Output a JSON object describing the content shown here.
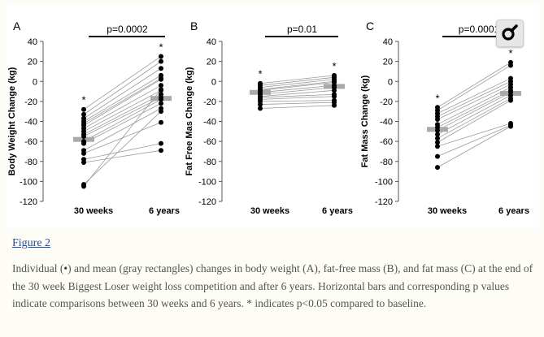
{
  "figure": {
    "link_label": "Figure 2",
    "caption_part1": "Individual (",
    "caption_bullet": "•",
    "caption_part2": ") and mean (gray rectangles) changes in body weight (A), fat-free mass (B), and fat mass (C) at the end of the 30 week Biggest Loser weight loss competition and after 6 years. Horizontal bars and corresponding p values indicate comparisons between 30 weeks and 6 years. * indicates p<0.05 compared to baseline.",
    "zoom_icon": "magnifier-icon"
  },
  "colors": {
    "dot": "#000000",
    "line": "#9a9a9a",
    "mean": "#a9a9a9",
    "axis": "#555555"
  },
  "chart_data": [
    {
      "type": "scatter",
      "panel": "A",
      "ylabel": "Body Weight Change (kg)",
      "categories": [
        "30 weeks",
        "6 years"
      ],
      "ylim": [
        -120,
        40
      ],
      "yticks": [
        40,
        20,
        0,
        -20,
        -40,
        -60,
        -80,
        -100,
        -120
      ],
      "pvalue": "p=0.0002",
      "stars": [
        "*",
        "*"
      ],
      "means": [
        -58,
        -17
      ],
      "pairs": [
        [
          -28,
          25
        ],
        [
          -33,
          20
        ],
        [
          -37,
          13
        ],
        [
          -40,
          6
        ],
        [
          -42,
          3
        ],
        [
          -44,
          2
        ],
        [
          -47,
          -4
        ],
        [
          -50,
          -9
        ],
        [
          -53,
          -13
        ],
        [
          -55,
          -16
        ],
        [
          -60,
          -18
        ],
        [
          -62,
          -22
        ],
        [
          -69,
          -27
        ],
        [
          -72,
          -41
        ],
        [
          -78,
          -62
        ],
        [
          -81,
          -69
        ],
        [
          -103,
          -30
        ],
        [
          -105,
          -8
        ]
      ]
    },
    {
      "type": "scatter",
      "panel": "B",
      "ylabel": "Fat Free Mas  Change (kg)",
      "categories": [
        "30 weeks",
        "6 years"
      ],
      "ylim": [
        -120,
        40
      ],
      "yticks": [
        40,
        20,
        0,
        -20,
        -40,
        -60,
        -80,
        -100,
        -120
      ],
      "pvalue": "p=0.01",
      "stars": [
        "*",
        "*"
      ],
      "means": [
        -11,
        -5
      ],
      "pairs": [
        [
          -2,
          6
        ],
        [
          -4,
          4
        ],
        [
          -6,
          2
        ],
        [
          -8,
          0
        ],
        [
          -9,
          -1
        ],
        [
          -11,
          -4
        ],
        [
          -13,
          -6
        ],
        [
          -15,
          -9
        ],
        [
          -16,
          -13
        ],
        [
          -18,
          -15
        ],
        [
          -20,
          -19
        ],
        [
          -23,
          -21
        ],
        [
          -27,
          -24
        ]
      ]
    },
    {
      "type": "scatter",
      "panel": "C",
      "ylabel": "Fat Mass Change (kg)",
      "categories": [
        "30 weeks",
        "6 years"
      ],
      "ylim": [
        -120,
        40
      ],
      "yticks": [
        40,
        20,
        0,
        -20,
        -40,
        -60,
        -80,
        -100,
        -120
      ],
      "pvalue": "p=0.0001",
      "stars": [
        "*",
        "*"
      ],
      "means": [
        -48,
        -12
      ],
      "pairs": [
        [
          -26,
          19
        ],
        [
          -29,
          16
        ],
        [
          -32,
          3
        ],
        [
          -35,
          0
        ],
        [
          -38,
          -3
        ],
        [
          -43,
          -6
        ],
        [
          -46,
          -9
        ],
        [
          -49,
          -11
        ],
        [
          -53,
          -14
        ],
        [
          -57,
          -17
        ],
        [
          -61,
          -19
        ],
        [
          -65,
          -42
        ],
        [
          -75,
          -44
        ],
        [
          -86,
          -45
        ]
      ]
    }
  ]
}
